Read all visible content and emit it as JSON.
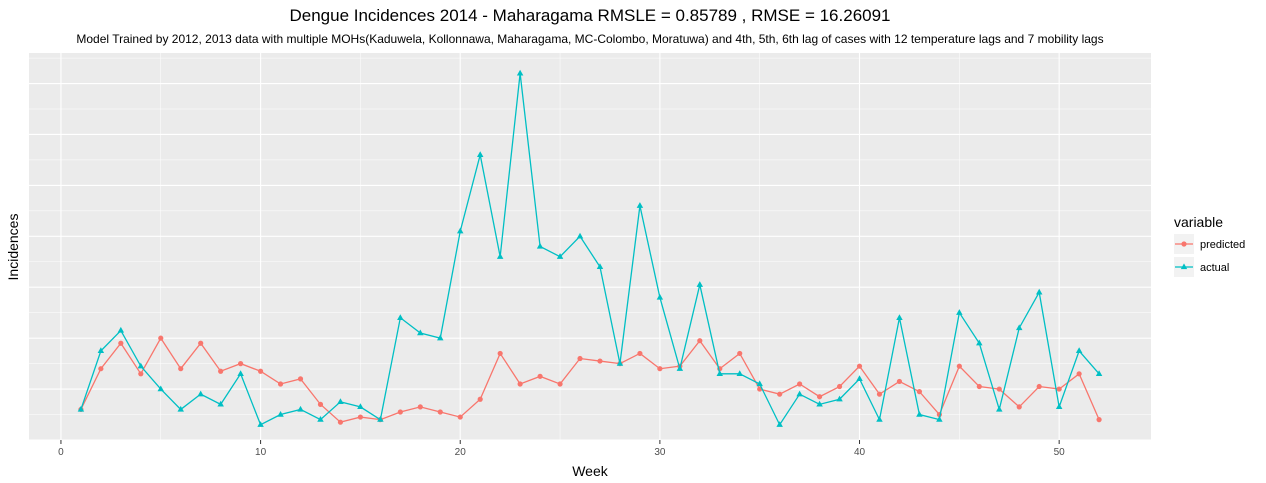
{
  "chart_data": {
    "type": "line",
    "title": "Dengue Incidences 2014 -  Maharagama  RMSLE =  0.85789 , RMSE =  16.26091",
    "subtitle": "Model Trained by 2012, 2013 data with multiple MOHs(Kaduwela, Kollonnawa, Maharagama, MC-Colombo, Moratuwa) and 4th, 5th, 6th lag of cases with 12 temperature lags and 7 mobility lags",
    "xlabel": "Week",
    "ylabel": "Incidences",
    "xlim": [
      -1.6,
      54.6
    ],
    "ylim": [
      0,
      76
    ],
    "x_ticks": [
      0,
      10,
      20,
      30,
      40,
      50
    ],
    "grid": true,
    "legend": {
      "title": "variable",
      "position": "right"
    },
    "x": [
      1,
      2,
      3,
      4,
      5,
      6,
      7,
      8,
      9,
      10,
      11,
      12,
      13,
      14,
      15,
      16,
      17,
      18,
      19,
      20,
      21,
      22,
      23,
      24,
      25,
      26,
      27,
      28,
      29,
      30,
      31,
      32,
      33,
      34,
      35,
      36,
      37,
      38,
      39,
      40,
      41,
      42,
      43,
      44,
      45,
      46,
      47,
      48,
      49,
      50,
      51,
      52
    ],
    "series": [
      {
        "name": "predicted",
        "color": "#F8766D",
        "marker": "circle",
        "values": [
          6,
          14,
          19,
          13,
          20,
          14,
          19,
          13.5,
          15,
          13.5,
          11,
          12,
          7,
          3.5,
          4.5,
          4,
          5.5,
          6.5,
          5.5,
          4.5,
          8,
          17,
          11,
          12.5,
          11,
          16,
          15.5,
          15,
          17,
          14,
          14.5,
          19.5,
          14,
          17,
          10,
          9,
          11,
          8.5,
          10.5,
          14.5,
          9,
          11.5,
          9.5,
          5,
          14.5,
          10.5,
          10,
          6.5,
          10.5,
          10,
          13,
          4
        ]
      },
      {
        "name": "actual",
        "color": "#00BFC4",
        "marker": "triangle",
        "values": [
          6,
          17.5,
          21.5,
          14.5,
          10,
          6,
          9,
          7,
          13,
          3,
          5,
          6,
          4,
          7.5,
          6.5,
          4,
          24,
          21,
          20,
          41,
          56,
          36,
          72,
          38,
          36,
          40,
          34,
          15,
          46,
          28,
          14,
          30.5,
          13,
          13,
          11,
          3,
          9,
          7,
          8,
          12,
          4,
          24,
          5,
          4,
          25,
          19,
          6,
          22,
          29,
          6.5,
          17.5,
          13
        ]
      }
    ]
  }
}
